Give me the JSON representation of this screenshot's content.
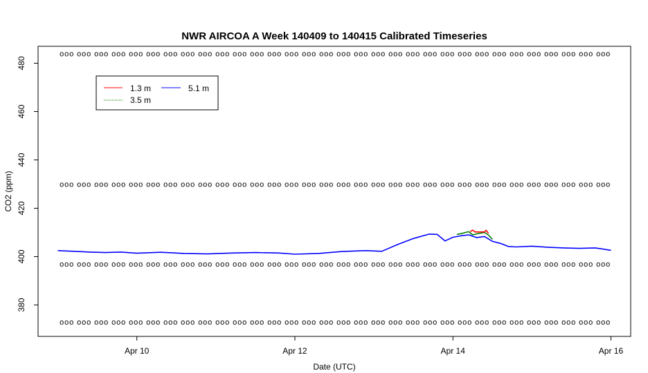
{
  "chart_data": {
    "type": "line",
    "title": "NWR AIRCOA A  Week 140409 to 140415  Calibrated Timeseries",
    "xlabel": "Date (UTC)",
    "ylabel": "CO2 (ppm)",
    "x_ticks": [
      {
        "value": 10,
        "label": "Apr 10"
      },
      {
        "value": 12,
        "label": "Apr 12"
      },
      {
        "value": 14,
        "label": "Apr 14"
      },
      {
        "value": 16,
        "label": "Apr 16"
      }
    ],
    "y_ticks": [
      380,
      400,
      420,
      440,
      460,
      480
    ],
    "xlim": [
      8.75,
      16.25
    ],
    "ylim": [
      367,
      487
    ],
    "grid": false,
    "legend": {
      "position": "top-left",
      "entries": [
        {
          "label": "1.3 m",
          "color": "#ff0000"
        },
        {
          "label": "5.1 m",
          "color": "#0000ff"
        },
        {
          "label": "3.5 m",
          "color": "#008000"
        }
      ]
    },
    "series": [
      {
        "name": "5.1 m",
        "color": "#0000ff",
        "x": [
          9.0,
          9.2,
          9.4,
          9.6,
          9.8,
          10.0,
          10.3,
          10.6,
          10.9,
          11.2,
          11.5,
          11.8,
          12.0,
          12.3,
          12.6,
          12.9,
          13.1,
          13.3,
          13.5,
          13.7,
          13.8,
          13.9,
          14.0,
          14.1,
          14.2,
          14.3,
          14.4,
          14.5,
          14.6,
          14.7,
          14.8,
          15.0,
          15.2,
          15.4,
          15.6,
          15.8,
          15.9,
          16.0
        ],
        "y": [
          402.5,
          402.2,
          401.9,
          401.7,
          401.9,
          401.4,
          401.8,
          401.3,
          401.1,
          401.5,
          401.7,
          401.5,
          401.0,
          401.3,
          402.1,
          402.5,
          402.2,
          405.0,
          407.5,
          409.3,
          409.2,
          406.5,
          408.0,
          408.6,
          409.0,
          407.9,
          408.3,
          406.3,
          405.5,
          404.2,
          404.0,
          404.3,
          403.9,
          403.6,
          403.4,
          403.6,
          403.1,
          402.6
        ]
      },
      {
        "name": "3.5 m",
        "color": "#008000",
        "x": [
          14.05,
          14.1,
          14.2,
          14.25,
          14.3,
          14.4,
          14.45,
          14.5
        ],
        "y": [
          409.2,
          409.5,
          410.3,
          409.0,
          409.4,
          410.0,
          408.9,
          407.2
        ]
      },
      {
        "name": "1.3 m",
        "color": "#ff0000",
        "x": [
          14.22,
          14.25,
          14.28,
          14.4,
          14.42,
          14.45
        ],
        "y": [
          410.3,
          411.0,
          410.2,
          410.2,
          410.9,
          409.6
        ]
      }
    ],
    "flag_rows": [
      {
        "y": 484
      },
      {
        "y": 430
      },
      {
        "y": 397
      },
      {
        "y": 373
      }
    ],
    "flag_marker": "o"
  }
}
